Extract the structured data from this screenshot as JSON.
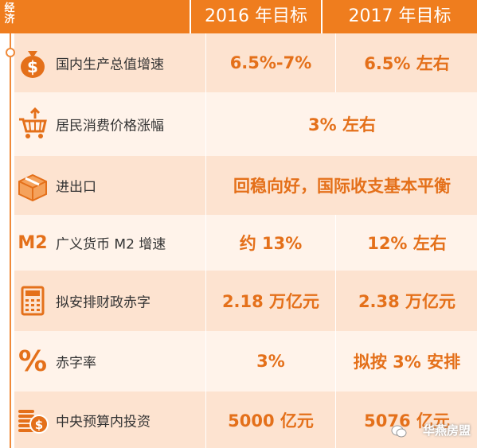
{
  "header": {
    "corner": "经济",
    "col_a": "2016 年目标",
    "col_b": "2017 年目标"
  },
  "rows": [
    {
      "label": "国内生产总值增速",
      "icon": "money-bag-icon",
      "a": "6.5%-7%",
      "b": "6.5% 左右"
    },
    {
      "label": "居民消费价格涨幅",
      "icon": "shopping-cart-icon",
      "span": "3% 左右"
    },
    {
      "label": "进出口",
      "icon": "cargo-box-icon",
      "span": "回稳向好，国际收支基本平衡"
    },
    {
      "label": "广义货币 M2 增速",
      "icon": "m2-icon",
      "icon_text": "M2",
      "a": "约 13%",
      "b": "12% 左右"
    },
    {
      "label": "拟安排财政赤字",
      "icon": "calculator-icon",
      "a": "2.18 万亿元",
      "b": "2.38 万亿元"
    },
    {
      "label": "赤字率",
      "icon": "percent-icon",
      "icon_text": "%",
      "a": "3%",
      "b": "拟按 3% 安排"
    },
    {
      "label": "中央预算内投资",
      "icon": "coins-icon",
      "a": "5000 亿元",
      "b": "5076 亿元"
    }
  ],
  "watermark": "华燕房盟",
  "colors": {
    "accent": "#ef7d1e",
    "row_dark": "#fde3d0",
    "row_light": "#fff3ea",
    "value": "#e4701a"
  }
}
